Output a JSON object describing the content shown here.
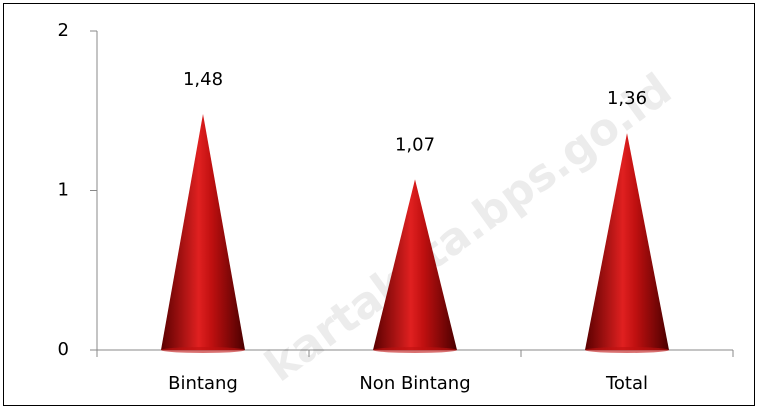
{
  "chart_data": {
    "type": "cone",
    "categories": [
      "Bintang",
      "Non Bintang",
      "Total"
    ],
    "values": [
      1.48,
      1.07,
      1.36
    ],
    "value_labels": [
      "1,48",
      "1,07",
      "1,36"
    ],
    "color": "#c01010",
    "ylim": [
      0,
      2
    ],
    "yticks": [
      0,
      1,
      2
    ],
    "watermark": "kartakota.bps.go.id"
  }
}
